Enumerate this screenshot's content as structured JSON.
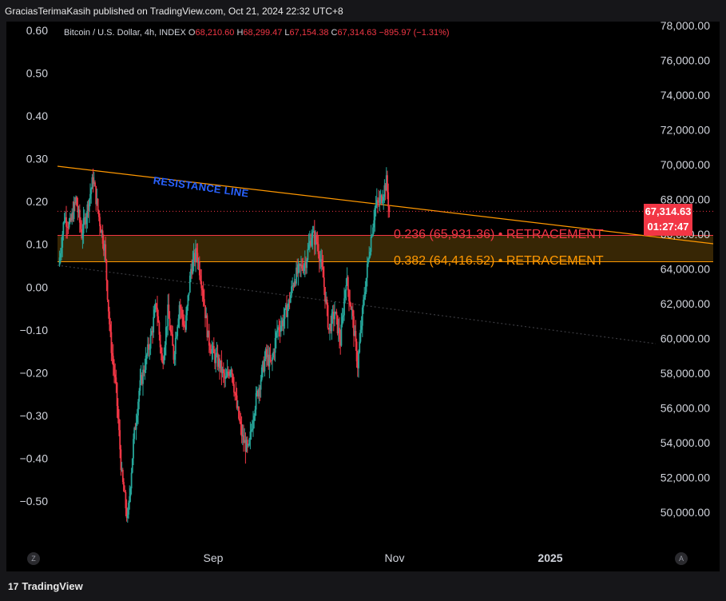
{
  "header": {
    "published_text": "GraciasTerimaKasih published on TradingView.com, Oct 21, 2024 22:32 UTC+8"
  },
  "legend": {
    "symbol": "Bitcoin / U.S. Dollar, 4h, INDEX",
    "open_label": "O",
    "open": "68,210.60",
    "high_label": "H",
    "high": "68,299.47",
    "low_label": "L",
    "low": "67,154.38",
    "close_label": "C",
    "close": "67,314.63",
    "change": "−895.97 (−1.31%)"
  },
  "price_tag": {
    "price": "67,314.63",
    "countdown": "01:27:47"
  },
  "annotations": {
    "resistance": "RESISTANCE LINE",
    "fib_236": "0.236 (65,931.36) • RETRACEMENT",
    "fib_382": "0.382 (64,416.52) • RETRACEMENT"
  },
  "corner_left": "Z",
  "corner_right": "A",
  "footer": {
    "brand": "TradingView"
  },
  "colors": {
    "up": "#26a69a",
    "down": "#f23645",
    "fib_fill": "#3d2a05",
    "fib_red": "#f23645",
    "fib_orange": "#ff9800",
    "resistance": "#ff9800"
  },
  "chart_data": {
    "type": "candlestick",
    "title": "",
    "right_axis": {
      "ticks": [
        "78,000.00",
        "76,000.00",
        "74,000.00",
        "72,000.00",
        "70,000.00",
        "68,000.00",
        "66,000.00",
        "64,000.00",
        "62,000.00",
        "60,000.00",
        "58,000.00",
        "56,000.00",
        "54,000.00",
        "52,000.00",
        "50,000.00"
      ],
      "ylim": [
        48000,
        78500
      ]
    },
    "left_axis": {
      "ticks": [
        "0.60",
        "0.50",
        "0.40",
        "0.30",
        "0.20",
        "0.10",
        "0.00",
        "−0.10",
        "−0.20",
        "−0.30",
        "−0.40",
        "−0.50"
      ],
      "ylim": [
        -0.6,
        0.6
      ]
    },
    "x_ticks": [
      "Sep",
      "Nov",
      "2025"
    ],
    "price_path": [
      [
        0,
        64200
      ],
      [
        2,
        67000
      ],
      [
        4,
        66500
      ],
      [
        6,
        68000
      ],
      [
        8,
        66000
      ],
      [
        10,
        67500
      ],
      [
        12,
        69200
      ],
      [
        14,
        67000
      ],
      [
        16,
        65200
      ],
      [
        18,
        60000
      ],
      [
        20,
        57000
      ],
      [
        22,
        52000
      ],
      [
        24,
        49500
      ],
      [
        26,
        54000
      ],
      [
        28,
        57000
      ],
      [
        30,
        58500
      ],
      [
        32,
        60000
      ],
      [
        34,
        62000
      ],
      [
        36,
        58500
      ],
      [
        38,
        61500
      ],
      [
        40,
        59000
      ],
      [
        42,
        62000
      ],
      [
        44,
        60500
      ],
      [
        46,
        64000
      ],
      [
        48,
        65000
      ],
      [
        50,
        63000
      ],
      [
        52,
        60000
      ],
      [
        54,
        59000
      ],
      [
        56,
        58500
      ],
      [
        58,
        57500
      ],
      [
        60,
        58500
      ],
      [
        62,
        56000
      ],
      [
        64,
        54200
      ],
      [
        66,
        53500
      ],
      [
        68,
        56000
      ],
      [
        70,
        57500
      ],
      [
        72,
        59000
      ],
      [
        74,
        58500
      ],
      [
        76,
        60500
      ],
      [
        78,
        61000
      ],
      [
        80,
        62000
      ],
      [
        82,
        63500
      ],
      [
        84,
        64000
      ],
      [
        86,
        64500
      ],
      [
        88,
        66000
      ],
      [
        90,
        65500
      ],
      [
        92,
        63500
      ],
      [
        94,
        60500
      ],
      [
        96,
        61500
      ],
      [
        98,
        59800
      ],
      [
        100,
        63500
      ],
      [
        102,
        61500
      ],
      [
        104,
        58500
      ],
      [
        106,
        62000
      ],
      [
        108,
        65000
      ],
      [
        110,
        67500
      ],
      [
        112,
        68000
      ],
      [
        114,
        69000
      ],
      [
        115,
        67300
      ]
    ],
    "fib_levels": [
      {
        "ratio": 0.236,
        "price": 65931.36
      },
      {
        "ratio": 0.382,
        "price": 64416.52
      }
    ],
    "resistance_line": [
      [
        0,
        69900
      ],
      [
        160,
        65500
      ]
    ]
  }
}
